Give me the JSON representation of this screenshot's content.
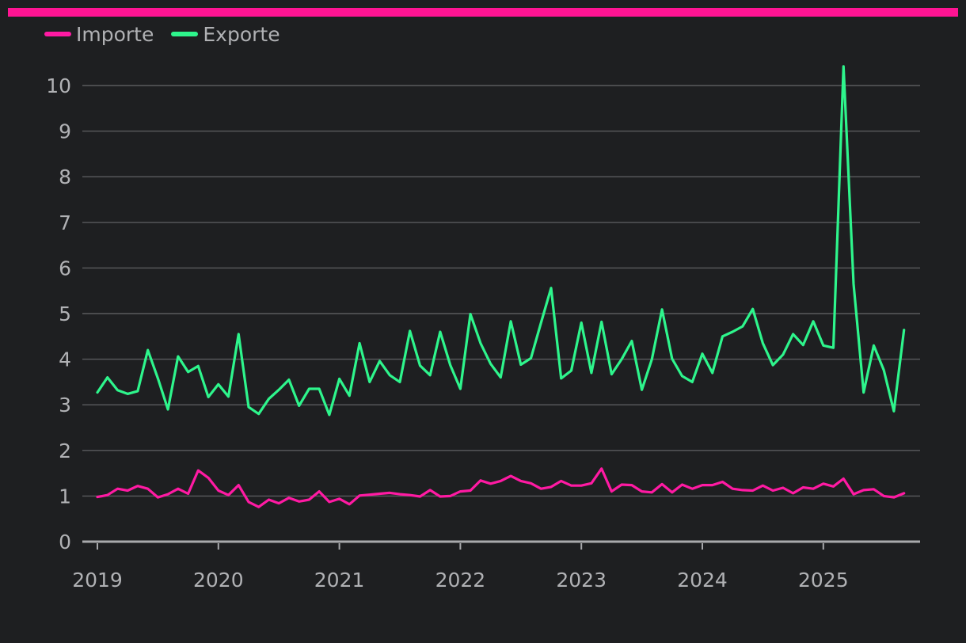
{
  "colors": {
    "accent": "#ff1493",
    "importe": "#ff1aa3",
    "exporte": "#2ef58c",
    "background": "#1e1f21",
    "grid": "#5a5b5e",
    "text": "#b0b1b4"
  },
  "chart_data": {
    "type": "line",
    "title": "",
    "xlabel": "",
    "ylabel": "",
    "x_start": "2019-01",
    "x_frequency": "monthly",
    "x_ticks": [
      "2019",
      "2020",
      "2021",
      "2022",
      "2023",
      "2024",
      "2025"
    ],
    "y_ticks": [
      0,
      1,
      2,
      3,
      4,
      5,
      6,
      7,
      8,
      9,
      10
    ],
    "ylim": [
      0,
      10.5
    ],
    "grid": true,
    "legend_position": "top-left",
    "series": [
      {
        "name": "Importe",
        "color": "#ff1aa3",
        "values": [
          0.98,
          1.02,
          1.16,
          1.12,
          1.22,
          1.16,
          0.97,
          1.04,
          1.16,
          1.05,
          1.56,
          1.4,
          1.12,
          1.02,
          1.24,
          0.87,
          0.76,
          0.92,
          0.84,
          0.96,
          0.88,
          0.92,
          1.1,
          0.87,
          0.94,
          0.82,
          1.01,
          1.03,
          1.05,
          1.07,
          1.04,
          1.02,
          0.99,
          1.13,
          0.99,
          1.0,
          1.1,
          1.12,
          1.34,
          1.27,
          1.33,
          1.44,
          1.33,
          1.28,
          1.16,
          1.2,
          1.33,
          1.23,
          1.23,
          1.28,
          1.6,
          1.1,
          1.25,
          1.24,
          1.1,
          1.08,
          1.26,
          1.08,
          1.25,
          1.16,
          1.24,
          1.24,
          1.31,
          1.16,
          1.13,
          1.12,
          1.23,
          1.12,
          1.18,
          1.06,
          1.19,
          1.16,
          1.27,
          1.21,
          1.38,
          1.04,
          1.13,
          1.15,
          1.0,
          0.97,
          1.06
        ]
      },
      {
        "name": "Exporte",
        "color": "#2ef58c",
        "values": [
          3.27,
          3.6,
          3.32,
          3.24,
          3.3,
          4.2,
          3.58,
          2.9,
          4.06,
          3.72,
          3.85,
          3.17,
          3.45,
          3.18,
          4.55,
          2.95,
          2.8,
          3.13,
          3.33,
          3.55,
          2.98,
          3.35,
          3.35,
          2.78,
          3.57,
          3.2,
          4.35,
          3.5,
          3.96,
          3.65,
          3.5,
          4.62,
          3.86,
          3.65,
          4.6,
          3.87,
          3.35,
          4.99,
          4.35,
          3.9,
          3.6,
          4.83,
          3.88,
          4.02,
          4.8,
          5.56,
          3.58,
          3.75,
          4.8,
          3.7,
          4.82,
          3.67,
          4.0,
          4.4,
          3.33,
          4.0,
          5.09,
          4.01,
          3.63,
          3.5,
          4.12,
          3.7,
          4.5,
          4.6,
          4.72,
          5.1,
          4.35,
          3.87,
          4.1,
          4.55,
          4.31,
          4.83,
          4.3,
          4.25,
          10.42,
          5.65,
          3.27,
          4.3,
          3.76,
          2.86,
          4.64
        ]
      }
    ]
  }
}
